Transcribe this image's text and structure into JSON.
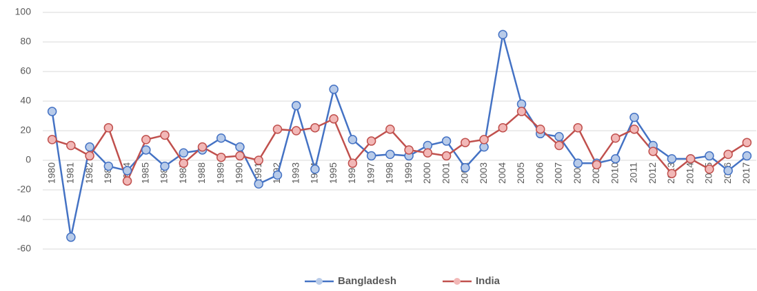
{
  "chart_data": {
    "type": "line",
    "categories": [
      "1980",
      "1981",
      "1982",
      "1983",
      "1984",
      "1985",
      "1986",
      "1987",
      "1988",
      "1989",
      "1990",
      "1991",
      "1992",
      "1993",
      "1994",
      "1995",
      "1996",
      "1997",
      "1998",
      "1999",
      "2000",
      "2001",
      "2002",
      "2003",
      "2004",
      "2005",
      "2006",
      "2007",
      "2008",
      "2009",
      "2010",
      "2011",
      "2012",
      "2013",
      "2014",
      "2015",
      "2016",
      "2017"
    ],
    "series": [
      {
        "name": "Bangladesh",
        "color": "#4472c4",
        "values": [
          33,
          -52,
          9,
          -4,
          -7,
          7,
          -4,
          5,
          7,
          15,
          9,
          -16,
          -10,
          37,
          -6,
          48,
          14,
          3,
          4,
          3,
          10,
          13,
          -5,
          9,
          85,
          38,
          18,
          16,
          -2,
          -2,
          1,
          29,
          10,
          1,
          1,
          3,
          -7,
          3
        ]
      },
      {
        "name": "India",
        "color": "#c0504d",
        "values": [
          14,
          10,
          3,
          22,
          -14,
          14,
          17,
          -2,
          9,
          2,
          3,
          0,
          21,
          20,
          22,
          28,
          -2,
          13,
          21,
          7,
          5,
          3,
          12,
          14,
          22,
          33,
          21,
          10,
          22,
          -3,
          15,
          21,
          6,
          -9,
          1,
          -6,
          4,
          12
        ]
      }
    ],
    "ylim": [
      -60,
      100
    ],
    "yticks": [
      -60,
      -40,
      -20,
      0,
      20,
      40,
      60,
      80,
      100
    ],
    "grid": true,
    "legend": "bottom"
  }
}
